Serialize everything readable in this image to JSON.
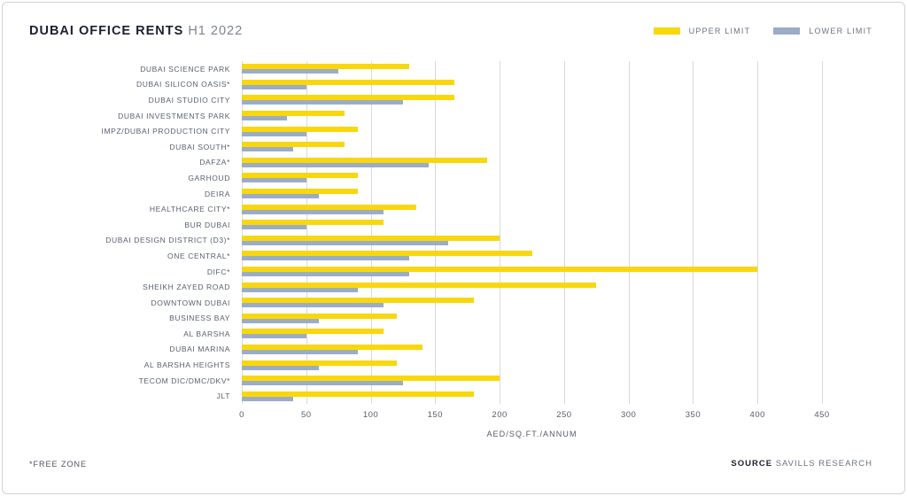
{
  "header": {
    "title_bold": "DUBAI OFFICE RENTS",
    "title_light": "H1 2022",
    "legend": [
      {
        "label": "UPPER LIMIT",
        "color": "#F9D70E"
      },
      {
        "label": "LOWER LIMIT",
        "color": "#9BACC8"
      }
    ]
  },
  "chart_data": {
    "type": "bar",
    "orientation": "horizontal",
    "title": "DUBAI OFFICE RENTS H1 2022",
    "xlabel": "AED/SQ.FT./ANNUM",
    "xlim": [
      0,
      450
    ],
    "xticks": [
      0,
      50,
      100,
      150,
      200,
      250,
      300,
      350,
      400,
      450
    ],
    "grid": "vertical",
    "legend_position": "top-right",
    "categories": [
      "DUBAI SCIENCE PARK",
      "DUBAI SILICON OASIS*",
      "DUBAI STUDIO CITY",
      "DUBAI INVESTMENTS PARK",
      "IMPZ/DUBAI PRODUCTION CITY",
      "DUBAI SOUTH*",
      "DAFZA*",
      "GARHOUD",
      "DEIRA",
      "HEALTHCARE CITY*",
      "BUR DUBAI",
      "DUBAI DESIGN DISTRICT (D3)*",
      "ONE CENTRAL*",
      "DIFC*",
      "SHEIKH ZAYED ROAD",
      "DOWNTOWN DUBAI",
      "BUSINESS BAY",
      "AL BARSHA",
      "DUBAI MARINA",
      "AL BARSHA HEIGHTS",
      "TECOM DIC/DMC/DKV*",
      "JLT"
    ],
    "series": [
      {
        "name": "UPPER LIMIT",
        "color": "#F9D70E",
        "values": [
          130,
          165,
          165,
          80,
          90,
          80,
          190,
          90,
          90,
          135,
          110,
          200,
          225,
          400,
          275,
          180,
          120,
          110,
          140,
          120,
          200,
          180
        ]
      },
      {
        "name": "LOWER LIMIT",
        "color": "#9BACC8",
        "values": [
          75,
          50,
          125,
          35,
          50,
          40,
          145,
          50,
          60,
          110,
          50,
          160,
          130,
          130,
          90,
          110,
          60,
          50,
          90,
          60,
          125,
          40
        ]
      }
    ]
  },
  "footer": {
    "note": "*FREE ZONE",
    "source_label": "SOURCE",
    "source_value": " SAVILLS RESEARCH"
  }
}
